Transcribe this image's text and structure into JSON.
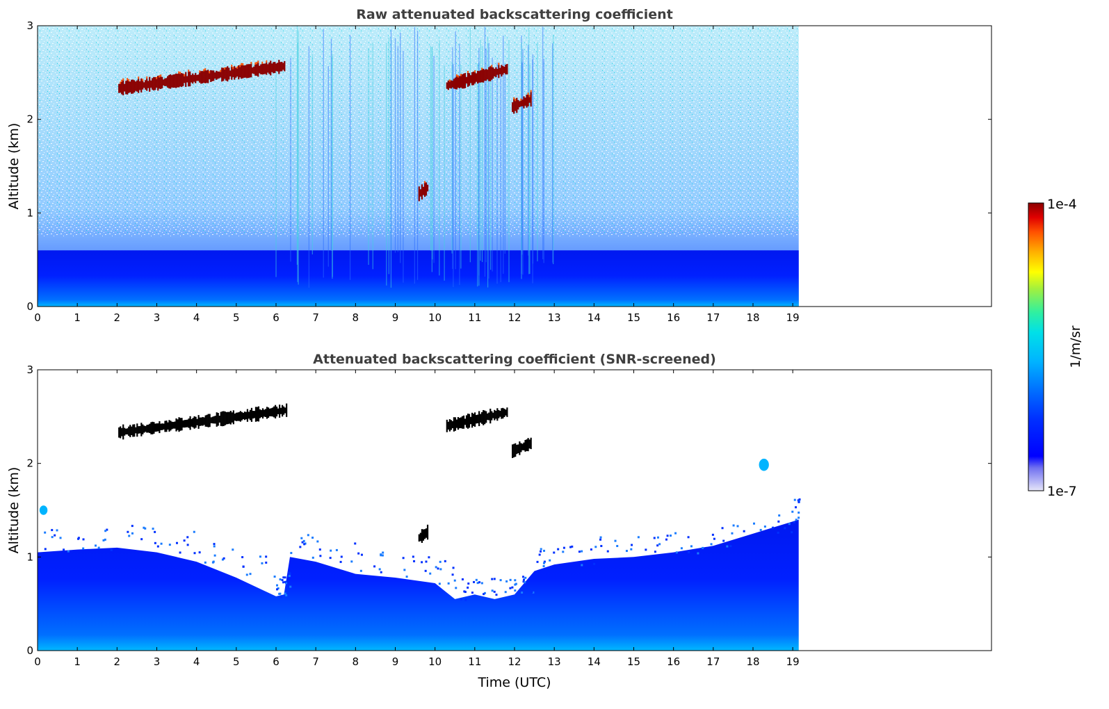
{
  "colors": {
    "colormap": [
      "#e6e6f8",
      "#aaaaf5",
      "#7070f0",
      "#0000ff",
      "#0030ff",
      "#0070ff",
      "#00b4ff",
      "#00e0e8",
      "#30f0a0",
      "#a0f040",
      "#ffff00",
      "#ffb000",
      "#ff5000",
      "#e00000",
      "#8b0000"
    ],
    "cloud_core": "#8b0000",
    "screened_cloud": "#000000"
  },
  "chart_data": [
    {
      "type": "heatmap",
      "title": "Raw attenuated backscattering coefficient",
      "xlabel": "",
      "ylabel": "Altitude (km)",
      "xlim": [
        0,
        24
      ],
      "ylim": [
        0,
        3
      ],
      "x_ticks": [
        "0",
        "1",
        "2",
        "3",
        "4",
        "5",
        "6",
        "7",
        "8",
        "9",
        "10",
        "11",
        "12",
        "13",
        "14",
        "15",
        "16",
        "17",
        "18",
        "19"
      ],
      "y_ticks": [
        "0",
        "1",
        "2",
        "3"
      ],
      "data_end_time": 19.15,
      "units": "1/m/sr",
      "features": [
        {
          "kind": "cloud",
          "x": [
            2.05,
            6.25
          ],
          "y": [
            2.25,
            2.65
          ],
          "level": "1e-4"
        },
        {
          "kind": "cloud",
          "x": [
            10.3,
            11.85
          ],
          "y": [
            2.3,
            2.6
          ],
          "level": "1e-4"
        },
        {
          "kind": "cloud",
          "x": [
            11.95,
            12.45
          ],
          "y": [
            2.1,
            2.25
          ],
          "level": "1e-4"
        },
        {
          "kind": "cloud",
          "x": [
            9.6,
            9.85
          ],
          "y": [
            1.18,
            1.3
          ],
          "level": "1e-4"
        },
        {
          "kind": "aerosol_layer",
          "x": [
            0,
            19.15
          ],
          "y": [
            0,
            0.6
          ],
          "level": "1e-6"
        }
      ]
    },
    {
      "type": "heatmap",
      "title": "Attenuated backscattering coefficient (SNR-screened)",
      "xlabel": "Time (UTC)",
      "ylabel": "Altitude (km)",
      "xlim": [
        0,
        24
      ],
      "ylim": [
        0,
        3
      ],
      "x_ticks": [
        "0",
        "1",
        "2",
        "3",
        "4",
        "5",
        "6",
        "7",
        "8",
        "9",
        "10",
        "11",
        "12",
        "13",
        "14",
        "15",
        "16",
        "17",
        "18",
        "19"
      ],
      "y_ticks": [
        "0",
        "1",
        "2",
        "3"
      ],
      "data_end_time": 19.15,
      "units": "1/m/sr",
      "boundary_layer_top": [
        {
          "t": 0,
          "z": 1.05
        },
        {
          "t": 1,
          "z": 1.08
        },
        {
          "t": 2,
          "z": 1.1
        },
        {
          "t": 3,
          "z": 1.05
        },
        {
          "t": 4,
          "z": 0.95
        },
        {
          "t": 5,
          "z": 0.78
        },
        {
          "t": 6,
          "z": 0.58
        },
        {
          "t": 6.2,
          "z": 0.6
        },
        {
          "t": 6.35,
          "z": 1.0
        },
        {
          "t": 7,
          "z": 0.95
        },
        {
          "t": 8,
          "z": 0.82
        },
        {
          "t": 9,
          "z": 0.78
        },
        {
          "t": 10,
          "z": 0.72
        },
        {
          "t": 10.5,
          "z": 0.55
        },
        {
          "t": 11,
          "z": 0.6
        },
        {
          "t": 11.5,
          "z": 0.55
        },
        {
          "t": 12,
          "z": 0.6
        },
        {
          "t": 12.5,
          "z": 0.85
        },
        {
          "t": 13,
          "z": 0.92
        },
        {
          "t": 14,
          "z": 0.98
        },
        {
          "t": 15,
          "z": 1.0
        },
        {
          "t": 16,
          "z": 1.05
        },
        {
          "t": 17,
          "z": 1.12
        },
        {
          "t": 18,
          "z": 1.25
        },
        {
          "t": 19,
          "z": 1.38
        },
        {
          "t": 19.15,
          "z": 1.4
        }
      ],
      "features": [
        {
          "kind": "cloud",
          "x": [
            2.05,
            6.3
          ],
          "y": [
            2.25,
            2.65
          ],
          "level": "screened"
        },
        {
          "kind": "cloud",
          "x": [
            10.3,
            11.85
          ],
          "y": [
            2.35,
            2.6
          ],
          "level": "screened"
        },
        {
          "kind": "cloud",
          "x": [
            11.95,
            12.45
          ],
          "y": [
            2.1,
            2.25
          ],
          "level": "screened"
        },
        {
          "kind": "cloud",
          "x": [
            9.6,
            9.85
          ],
          "y": [
            1.18,
            1.3
          ],
          "level": "screened"
        },
        {
          "kind": "aerosol_patch",
          "x": [
            18.15,
            18.4
          ],
          "y": [
            1.92,
            2.05
          ],
          "level": "2e-6"
        },
        {
          "kind": "aerosol_patch",
          "x": [
            0.05,
            0.25
          ],
          "y": [
            1.45,
            1.55
          ],
          "level": "2e-6"
        }
      ]
    }
  ],
  "colorbar": {
    "label": "1/m/sr",
    "max_label": "1e-4",
    "min_label": "1e-7"
  }
}
